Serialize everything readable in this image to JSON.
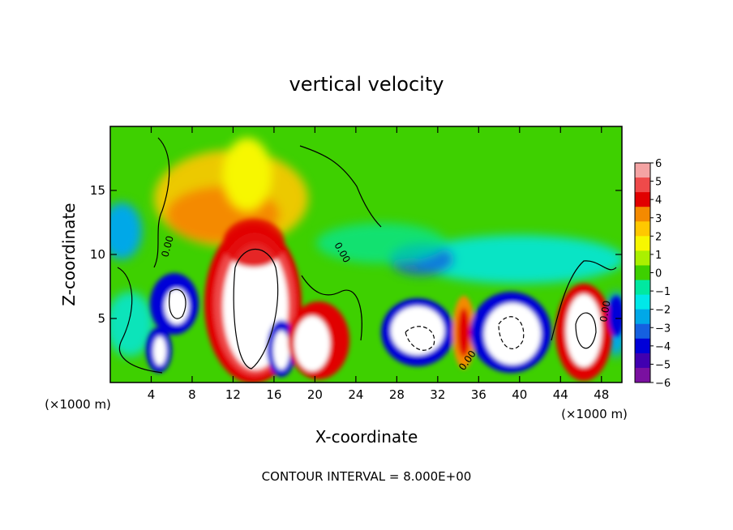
{
  "chart_data": {
    "type": "heatmap",
    "title": "vertical velocity",
    "xlabel": "X-coordinate",
    "ylabel": "Z-coordinate",
    "x_unit_label": "(×1000 m)",
    "footer": "CONTOUR INTERVAL = 8.000E+00",
    "xlim": [
      0,
      50
    ],
    "ylim": [
      0,
      20
    ],
    "x_ticks": [
      4,
      8,
      12,
      16,
      20,
      24,
      28,
      32,
      36,
      40,
      44,
      48
    ],
    "x_tick_labels": [
      "4",
      "8",
      "12",
      "16",
      "20",
      "24",
      "28",
      "32",
      "36",
      "40",
      "44",
      "48"
    ],
    "y_ticks": [
      5,
      10,
      15
    ],
    "y_tick_labels": [
      "5",
      "10",
      "15"
    ],
    "colorbar": {
      "min": -6,
      "max": 6,
      "ticks": [
        6,
        5,
        4,
        3,
        2,
        1,
        0,
        -1,
        -2,
        -3,
        -4,
        -5,
        -6
      ],
      "tick_labels": [
        "6",
        "5",
        "4",
        "3",
        "2",
        "1",
        "0",
        "−1",
        "−2",
        "−3",
        "−4",
        "−5",
        "−6"
      ],
      "colors": [
        "#f4a3a3",
        "#ef4a4a",
        "#e10000",
        "#f48a00",
        "#ffc800",
        "#f7f700",
        "#aaf000",
        "#3ed000",
        "#00e8a0",
        "#00e8e8",
        "#00a8e8",
        "#1560e0",
        "#0000d8",
        "#4000b0",
        "#7a10a0"
      ]
    },
    "contour_interval": 8.0,
    "features": [
      {
        "x": 13.5,
        "z": 5.5,
        "sign": "positive",
        "peak_above_colorbar": true
      },
      {
        "x": 5.5,
        "z": 6.0,
        "sign": "negative",
        "peak_below_colorbar": true
      },
      {
        "x": 5.0,
        "z": 2.5,
        "sign": "negative",
        "peak_below_colorbar": true
      },
      {
        "x": 17.0,
        "z": 2.5,
        "sign": "negative",
        "peak_below_colorbar": true
      },
      {
        "x": 19.5,
        "z": 3.0,
        "sign": "positive",
        "peak_above_colorbar": true
      },
      {
        "x": 30.0,
        "z": 4.5,
        "sign": "negative",
        "peak_below_colorbar": true
      },
      {
        "x": 34.5,
        "z": 4.0,
        "sign": "positive"
      },
      {
        "x": 38.5,
        "z": 3.5,
        "sign": "negative",
        "peak_below_colorbar": true
      },
      {
        "x": 46.0,
        "z": 4.0,
        "sign": "positive",
        "peak_above_colorbar": true
      },
      {
        "x": 13.0,
        "z": 12.5,
        "sign": "positive"
      },
      {
        "x": 1.5,
        "z": 12.0,
        "sign": "negative"
      }
    ],
    "contour_labels": [
      "0.00",
      "0.00",
      "0.00",
      "0.00"
    ]
  }
}
